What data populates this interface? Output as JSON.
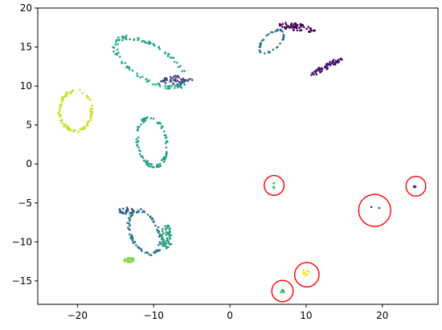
{
  "chart_data": {
    "type": "scatter",
    "title": "",
    "xlabel": "",
    "ylabel": "",
    "xlim": [
      -25.2,
      27.3
    ],
    "ylim": [
      -18.0,
      20.0
    ],
    "xticks": [
      -20,
      -10,
      0,
      10,
      20
    ],
    "yticks": [
      -15,
      -10,
      -5,
      0,
      5,
      10,
      15,
      20
    ],
    "grid": false,
    "legend": "none",
    "colors": {
      "dark_purple": "#440154",
      "purple": "#472d7b",
      "indigo": "#3b528b",
      "blue": "#2c728e",
      "teal": "#21918c",
      "green_teal": "#28ae80",
      "green": "#5ec962",
      "lime": "#addc30",
      "yellow": "#fde725",
      "circle": "#ff0000"
    },
    "clusters": [
      {
        "shape": "ring",
        "cx": -20.2,
        "cy": 6.8,
        "rx": 2.1,
        "ry": 2.6,
        "angle": 0,
        "n": 80,
        "color": "#c8e020"
      },
      {
        "shape": "ring",
        "cx": -10.5,
        "cy": 13.0,
        "rx": 5.2,
        "ry": 2.2,
        "angle": -30,
        "n": 120,
        "color": "#22a884"
      },
      {
        "shape": "blob",
        "cx": -7.0,
        "cy": 10.8,
        "rx": 2.3,
        "ry": 0.6,
        "angle": 0,
        "n": 45,
        "color": "#414487"
      },
      {
        "shape": "ring",
        "cx": -10.2,
        "cy": 2.8,
        "rx": 1.9,
        "ry": 3.1,
        "angle": 10,
        "n": 90,
        "color": "#1fa088"
      },
      {
        "shape": "ring",
        "cx": 5.5,
        "cy": 15.7,
        "rx": 1.0,
        "ry": 1.9,
        "angle": -50,
        "n": 40,
        "color": "#2c728e"
      },
      {
        "shape": "blob",
        "cx": 8.8,
        "cy": 17.5,
        "rx": 2.4,
        "ry": 0.5,
        "angle": -8,
        "n": 60,
        "color": "#440154"
      },
      {
        "shape": "blob",
        "cx": 12.7,
        "cy": 12.5,
        "rx": 2.4,
        "ry": 0.4,
        "angle": 28,
        "n": 55,
        "color": "#46166f"
      },
      {
        "shape": "ring",
        "cx": -11.2,
        "cy": -8.8,
        "rx": 1.8,
        "ry": 3.0,
        "angle": 25,
        "n": 90,
        "color": "#2a788e"
      },
      {
        "shape": "blob",
        "cx": -13.6,
        "cy": -6.0,
        "rx": 1.1,
        "ry": 0.4,
        "angle": 0,
        "n": 30,
        "color": "#355f8d"
      },
      {
        "shape": "blob",
        "cx": -8.3,
        "cy": -9.4,
        "rx": 0.8,
        "ry": 1.6,
        "angle": 0,
        "n": 60,
        "color": "#26a17d"
      },
      {
        "shape": "blob",
        "cx": -13.2,
        "cy": -12.3,
        "rx": 0.8,
        "ry": 0.3,
        "angle": 0,
        "n": 30,
        "color": "#86d549"
      },
      {
        "shape": "blob",
        "cx": 5.8,
        "cy": -2.8,
        "rx": 0.15,
        "ry": 0.35,
        "angle": 0,
        "n": 5,
        "color": "#3fbc73"
      },
      {
        "shape": "blob",
        "cx": 19.2,
        "cy": -5.8,
        "rx": 1.0,
        "ry": 0.3,
        "angle": -20,
        "n": 2,
        "color": "#414487"
      },
      {
        "shape": "blob",
        "cx": 24.3,
        "cy": -2.9,
        "rx": 0.2,
        "ry": 0.25,
        "angle": 0,
        "n": 5,
        "color": "#31316e"
      },
      {
        "shape": "blob",
        "cx": 10.0,
        "cy": -14.0,
        "rx": 0.5,
        "ry": 0.4,
        "angle": -30,
        "n": 10,
        "color": "#fde725"
      },
      {
        "shape": "blob",
        "cx": 6.9,
        "cy": -16.3,
        "rx": 0.3,
        "ry": 0.2,
        "angle": 0,
        "n": 8,
        "color": "#3fbc73"
      }
    ],
    "annotations": [
      {
        "type": "circle",
        "cx": 5.8,
        "cy": -2.75,
        "r": 1.3
      },
      {
        "type": "circle",
        "cx": 19.0,
        "cy": -5.95,
        "r": 2.1
      },
      {
        "type": "circle",
        "cx": 24.4,
        "cy": -2.85,
        "r": 1.3
      },
      {
        "type": "circle",
        "cx": 10.1,
        "cy": -14.2,
        "r": 1.6
      },
      {
        "type": "circle",
        "cx": 6.9,
        "cy": -16.3,
        "r": 1.4
      }
    ]
  }
}
